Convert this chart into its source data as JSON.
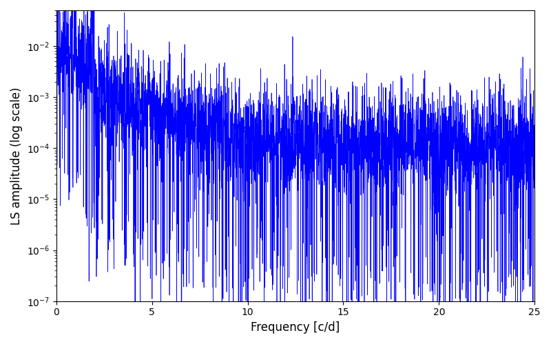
{
  "title": "",
  "xlabel": "Frequency [c/d]",
  "ylabel": "LS amplitude (log scale)",
  "xlim": [
    0,
    25
  ],
  "ylim": [
    1e-07,
    0.05
  ],
  "yscale": "log",
  "line_color": "#0000ff",
  "linewidth": 0.5,
  "figsize": [
    8.0,
    5.0
  ],
  "dpi": 100,
  "seed": 77,
  "n_points": 4000,
  "freq_max": 25.0,
  "background_color": "#ffffff"
}
